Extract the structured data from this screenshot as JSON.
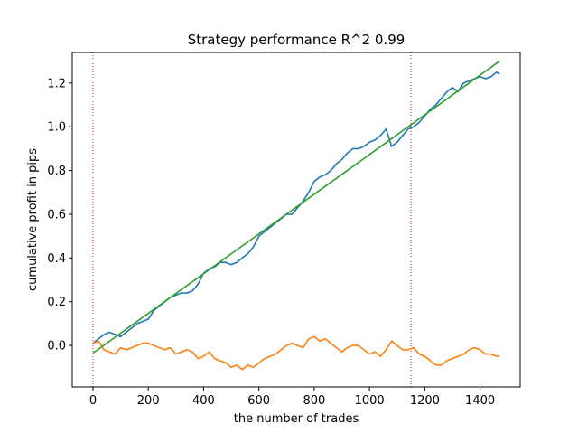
{
  "chart_data": {
    "type": "line",
    "title": "Strategy performance R^2 0.99",
    "xlabel": "the number of trades",
    "ylabel": "cumulative profit in pips",
    "xlim": [
      -75,
      1545
    ],
    "ylim": [
      -0.19,
      1.34
    ],
    "xticks": [
      0,
      200,
      400,
      600,
      800,
      1000,
      1200,
      1400
    ],
    "xtick_labels": [
      "0",
      "200",
      "400",
      "600",
      "800",
      "1000",
      "1200",
      "1400"
    ],
    "yticks": [
      0.0,
      0.2,
      0.4,
      0.6,
      0.8,
      1.0,
      1.2
    ],
    "ytick_labels": [
      "0.0",
      "0.2",
      "0.4",
      "0.6",
      "0.8",
      "1.0",
      "1.2"
    ],
    "grid": false,
    "vlines": [
      {
        "x": 0,
        "color": "#d62728",
        "style": "dotted"
      },
      {
        "x": 1150,
        "color": "#8b1a4a",
        "style": "dotted"
      }
    ],
    "series": [
      {
        "color": "#1f77b4",
        "x": [
          0,
          20,
          40,
          60,
          80,
          100,
          120,
          140,
          160,
          180,
          200,
          220,
          240,
          260,
          280,
          300,
          320,
          340,
          360,
          380,
          400,
          420,
          440,
          460,
          480,
          500,
          520,
          540,
          560,
          580,
          600,
          620,
          640,
          660,
          680,
          700,
          720,
          740,
          760,
          780,
          800,
          820,
          840,
          860,
          880,
          900,
          920,
          940,
          960,
          980,
          1000,
          1020,
          1040,
          1060,
          1080,
          1100,
          1120,
          1140,
          1160,
          1180,
          1200,
          1220,
          1240,
          1260,
          1280,
          1300,
          1320,
          1340,
          1360,
          1380,
          1400,
          1420,
          1440,
          1460,
          1470
        ],
        "y": [
          0.01,
          0.03,
          0.05,
          0.06,
          0.05,
          0.04,
          0.06,
          0.08,
          0.1,
          0.11,
          0.12,
          0.16,
          0.18,
          0.2,
          0.22,
          0.23,
          0.24,
          0.24,
          0.25,
          0.28,
          0.33,
          0.35,
          0.36,
          0.38,
          0.38,
          0.37,
          0.38,
          0.4,
          0.42,
          0.45,
          0.5,
          0.52,
          0.54,
          0.56,
          0.58,
          0.6,
          0.6,
          0.63,
          0.66,
          0.7,
          0.75,
          0.77,
          0.78,
          0.8,
          0.83,
          0.85,
          0.88,
          0.9,
          0.9,
          0.91,
          0.93,
          0.94,
          0.96,
          0.99,
          0.91,
          0.93,
          0.96,
          0.99,
          1.0,
          1.02,
          1.05,
          1.08,
          1.1,
          1.13,
          1.16,
          1.18,
          1.16,
          1.2,
          1.21,
          1.22,
          1.23,
          1.22,
          1.23,
          1.25,
          1.24
        ]
      },
      {
        "color": "#ff7f0e",
        "x": [
          0,
          20,
          40,
          60,
          80,
          100,
          120,
          140,
          160,
          180,
          200,
          220,
          240,
          260,
          280,
          300,
          320,
          340,
          360,
          380,
          400,
          420,
          440,
          460,
          480,
          500,
          520,
          540,
          560,
          580,
          600,
          620,
          640,
          660,
          680,
          700,
          720,
          740,
          760,
          780,
          800,
          820,
          840,
          860,
          880,
          900,
          920,
          940,
          960,
          980,
          1000,
          1020,
          1040,
          1060,
          1080,
          1100,
          1120,
          1140,
          1160,
          1180,
          1200,
          1220,
          1240,
          1260,
          1280,
          1300,
          1320,
          1340,
          1360,
          1380,
          1400,
          1420,
          1440,
          1460,
          1470
        ],
        "y": [
          0.01,
          0.02,
          -0.02,
          -0.03,
          -0.04,
          -0.01,
          -0.02,
          -0.01,
          0.0,
          0.01,
          0.01,
          0.0,
          -0.01,
          -0.02,
          -0.01,
          -0.04,
          -0.03,
          -0.02,
          -0.03,
          -0.06,
          -0.05,
          -0.03,
          -0.06,
          -0.07,
          -0.08,
          -0.1,
          -0.09,
          -0.11,
          -0.09,
          -0.1,
          -0.08,
          -0.06,
          -0.05,
          -0.04,
          -0.02,
          0.0,
          0.01,
          0.0,
          -0.01,
          0.03,
          0.04,
          0.02,
          0.03,
          0.01,
          -0.01,
          -0.03,
          -0.01,
          0.0,
          0.0,
          -0.02,
          -0.04,
          -0.03,
          -0.05,
          -0.02,
          0.02,
          0.0,
          -0.02,
          -0.02,
          -0.01,
          -0.04,
          -0.05,
          -0.07,
          -0.09,
          -0.09,
          -0.07,
          -0.06,
          -0.05,
          -0.04,
          -0.02,
          -0.01,
          -0.02,
          -0.04,
          -0.04,
          -0.05,
          -0.05
        ]
      },
      {
        "color": "#2ca02c",
        "x": [
          0,
          1470
        ],
        "y": [
          -0.035,
          1.3
        ]
      }
    ]
  }
}
